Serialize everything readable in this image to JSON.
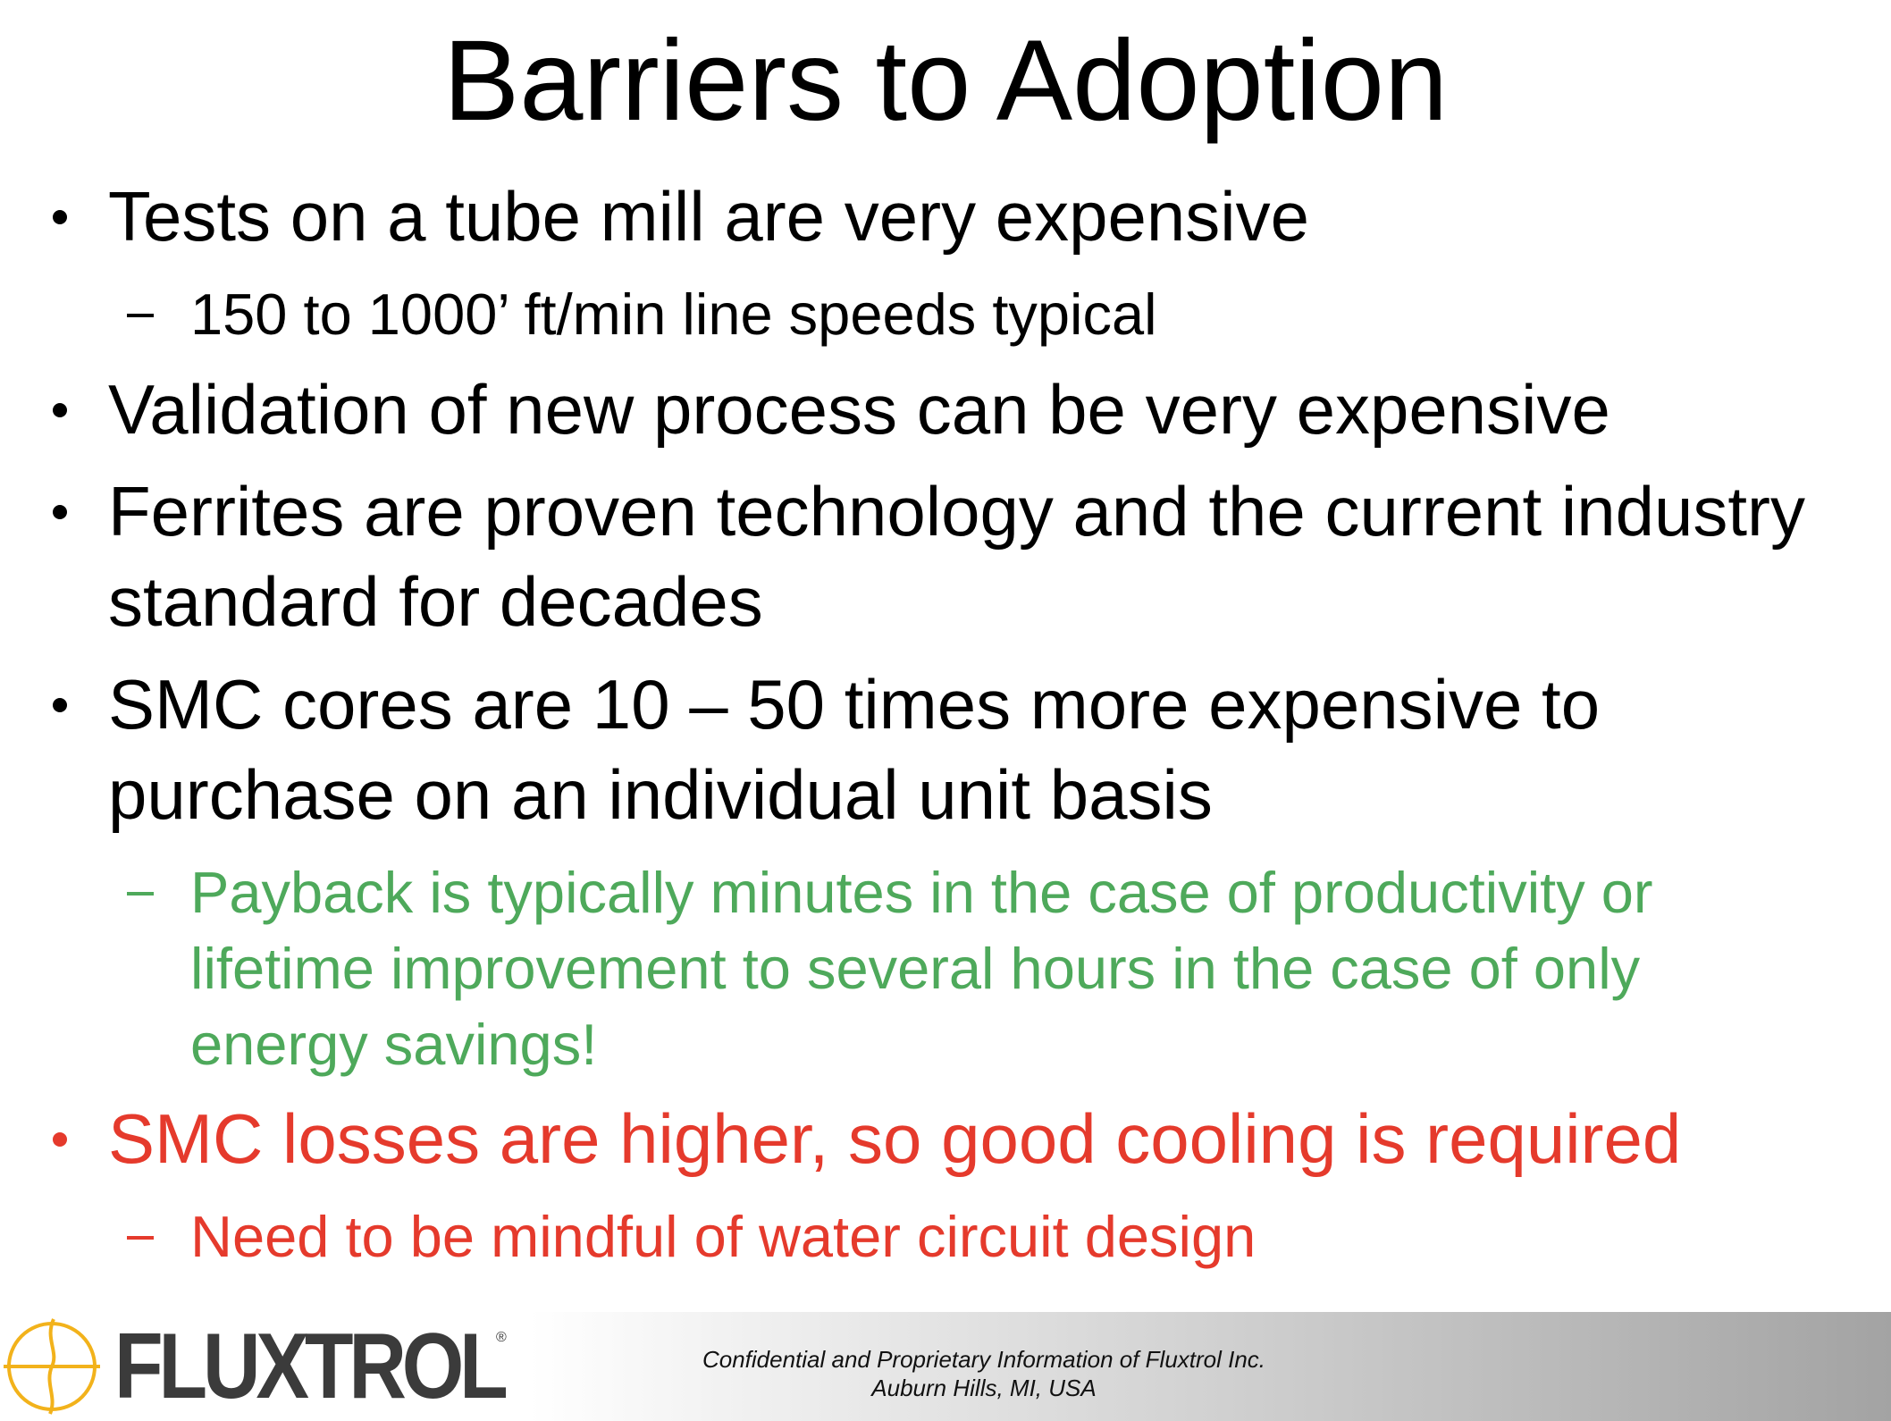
{
  "title": "Barriers to Adoption",
  "bullets": [
    {
      "level": 1,
      "color": "#000000",
      "text": "Tests on a tube mill are very expensive"
    },
    {
      "level": 2,
      "color": "#000000",
      "text": "150 to 1000’ ft/min line speeds typical"
    },
    {
      "level": 1,
      "color": "#000000",
      "text": "Validation of new process can be very expensive"
    },
    {
      "level": 1,
      "color": "#000000",
      "text": "Ferrites are proven technology and the current industry standard for decades"
    },
    {
      "level": 1,
      "color": "#000000",
      "text": "SMC cores are 10 – 50 times more expensive to purchase on an individual unit basis"
    },
    {
      "level": 2,
      "color": "#4ea95b",
      "text": "Payback is typically minutes in the case of productivity or lifetime improvement to several hours in the case of only energy savings!"
    },
    {
      "level": 1,
      "color": "#e53a2c",
      "text": "SMC losses are higher, so good cooling is required"
    },
    {
      "level": 2,
      "color": "#e53a2c",
      "text": "Need to be mindful of water circuit design"
    }
  ],
  "footer": {
    "logo": "FLUXTROL",
    "registered": "®",
    "lines": [
      "Confidential and Proprietary Information of Fluxtrol Inc.",
      "Auburn Hills, MI, USA"
    ]
  }
}
